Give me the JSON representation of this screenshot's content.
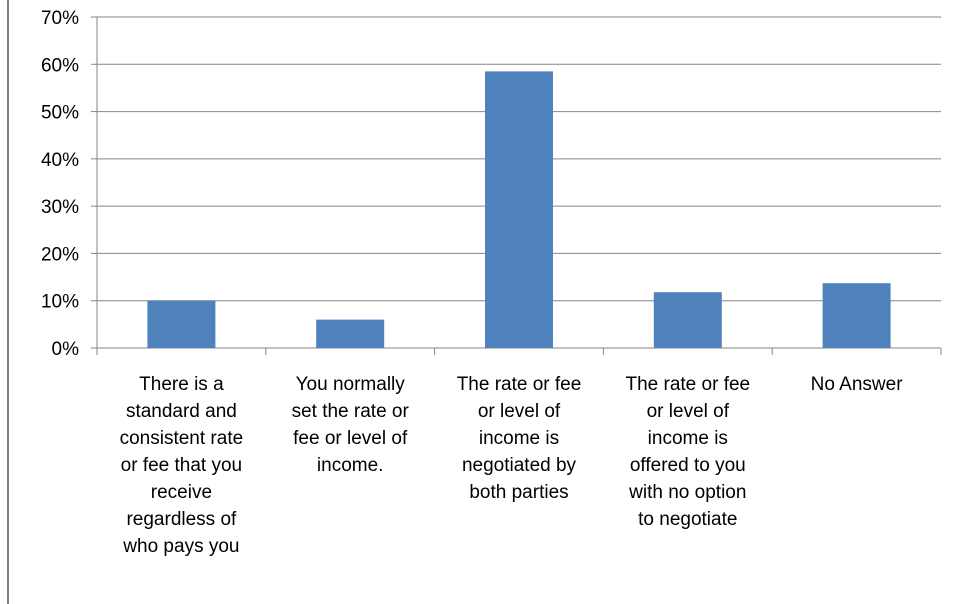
{
  "chart_data": {
    "type": "bar",
    "title": "",
    "xlabel": "",
    "ylabel": "",
    "ylim": [
      0,
      70
    ],
    "y_ticks": [
      "0%",
      "10%",
      "20%",
      "30%",
      "40%",
      "50%",
      "60%",
      "70%"
    ],
    "y_tick_values": [
      0,
      10,
      20,
      30,
      40,
      50,
      60,
      70
    ],
    "grid": true,
    "legend": "none",
    "bar_color": "#4f81bd",
    "categories": [
      [
        "There is a",
        "standard and",
        "consistent rate",
        "or fee that you",
        "receive",
        "regardless of",
        "who pays you"
      ],
      [
        "You normally",
        "set the rate or",
        "fee or level of",
        "income."
      ],
      [
        "The rate or fee",
        "or level of",
        "income is",
        "negotiated by",
        "both parties"
      ],
      [
        "The rate or fee",
        "or level of",
        "income is",
        "offered to you",
        "with no option",
        "to negotiate"
      ],
      [
        "No Answer"
      ]
    ],
    "values": [
      10,
      6,
      58.5,
      11.8,
      13.7
    ]
  }
}
